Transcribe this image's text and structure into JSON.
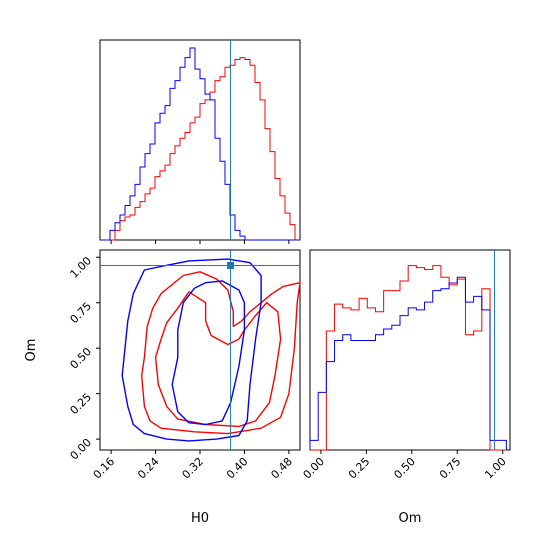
{
  "chart_data": {
    "type": "corner",
    "parameters": [
      "H0",
      "Om"
    ],
    "colors": {
      "red_series": "#ff0000",
      "blue_series": "#0000ff",
      "truth": "#1f77b4"
    },
    "truth": {
      "H0": 0.375,
      "Om": 0.955
    },
    "axes": {
      "H0": {
        "range": [
          0.14,
          0.5
        ],
        "ticks": [
          0.16,
          0.24,
          0.32,
          0.4,
          0.48
        ],
        "tick_labels": [
          "0.16",
          "0.24",
          "0.32",
          "0.40",
          "0.48"
        ],
        "xlabel": "H0"
      },
      "Om": {
        "range": [
          -0.06,
          1.04
        ],
        "ticks": [
          0.0,
          0.25,
          0.5,
          0.75,
          1.0
        ],
        "tick_labels": [
          "0.00",
          "0.25",
          "0.50",
          "0.75",
          "1.00"
        ],
        "xlabel": "Om",
        "ylabel": "Om"
      }
    },
    "hist_H0": {
      "bin_edges": [
        0.14,
        0.149,
        0.158,
        0.167,
        0.176,
        0.185,
        0.194,
        0.203,
        0.212,
        0.221,
        0.23,
        0.239,
        0.248,
        0.257,
        0.266,
        0.275,
        0.284,
        0.293,
        0.302,
        0.311,
        0.32,
        0.329,
        0.338,
        0.347,
        0.356,
        0.365,
        0.374,
        0.383,
        0.392,
        0.401,
        0.41,
        0.419,
        0.428,
        0.437,
        0.446,
        0.455,
        0.464,
        0.473,
        0.482,
        0.491,
        0.5
      ],
      "series": [
        {
          "color": "red",
          "counts": [
            0,
            0,
            0,
            0.05,
            0.1,
            0.12,
            0.13,
            0.17,
            0.2,
            0.24,
            0.27,
            0.33,
            0.36,
            0.39,
            0.45,
            0.49,
            0.53,
            0.56,
            0.61,
            0.64,
            0.71,
            0.73,
            0.77,
            0.83,
            0.85,
            0.9,
            0.91,
            0.94,
            0.95,
            0.94,
            0.91,
            0.82,
            0.73,
            0.58,
            0.46,
            0.32,
            0.23,
            0.14,
            0.08,
            0.0
          ]
        },
        {
          "color": "blue",
          "counts": [
            0,
            0,
            0.05,
            0.09,
            0.13,
            0.18,
            0.23,
            0.29,
            0.38,
            0.45,
            0.5,
            0.61,
            0.66,
            0.7,
            0.79,
            0.83,
            0.9,
            0.95,
            1.0,
            0.89,
            0.84,
            0.76,
            0.73,
            0.53,
            0.41,
            0.29,
            0.13,
            0.05,
            0.02,
            0.0,
            0,
            0,
            0,
            0,
            0,
            0,
            0,
            0,
            0,
            0
          ]
        }
      ]
    },
    "hist_Om": {
      "bin_edges": [
        -0.06,
        -0.015,
        0.03,
        0.075,
        0.12,
        0.165,
        0.21,
        0.255,
        0.3,
        0.345,
        0.39,
        0.435,
        0.48,
        0.525,
        0.57,
        0.615,
        0.66,
        0.705,
        0.75,
        0.795,
        0.84,
        0.885,
        0.93,
        0.975,
        1.02
      ],
      "series": [
        {
          "color": "red",
          "counts": [
            0,
            0,
            0.62,
            0.76,
            0.74,
            0.73,
            0.79,
            0.74,
            0.72,
            0.83,
            0.83,
            0.88,
            0.96,
            0.95,
            0.94,
            0.96,
            0.9,
            0.86,
            0.89,
            0.6,
            0.62,
            0.84,
            0.0,
            0.0
          ]
        },
        {
          "color": "blue",
          "counts": [
            0.05,
            0.3,
            0.46,
            0.57,
            0.6,
            0.57,
            0.57,
            0.57,
            0.6,
            0.63,
            0.65,
            0.7,
            0.74,
            0.73,
            0.77,
            0.83,
            0.84,
            0.87,
            0.9,
            0.77,
            0.8,
            0.73,
            0.05,
            0.05
          ]
        }
      ]
    },
    "contours": [
      {
        "color": "red",
        "level": "outer",
        "points": [
          [
            0.29,
            0.9
          ],
          [
            0.25,
            0.8
          ],
          [
            0.235,
            0.72
          ],
          [
            0.225,
            0.62
          ],
          [
            0.22,
            0.45
          ],
          [
            0.215,
            0.35
          ],
          [
            0.22,
            0.18
          ],
          [
            0.23,
            0.1
          ],
          [
            0.25,
            0.06
          ],
          [
            0.31,
            0.04
          ],
          [
            0.37,
            0.03
          ],
          [
            0.43,
            0.06
          ],
          [
            0.465,
            0.12
          ],
          [
            0.48,
            0.25
          ],
          [
            0.49,
            0.5
          ],
          [
            0.495,
            0.75
          ],
          [
            0.5,
            0.86
          ],
          [
            0.47,
            0.84
          ],
          [
            0.45,
            0.8
          ],
          [
            0.43,
            0.75
          ],
          [
            0.41,
            0.7
          ],
          [
            0.395,
            0.65
          ],
          [
            0.38,
            0.62
          ],
          [
            0.38,
            0.7
          ],
          [
            0.37,
            0.82
          ],
          [
            0.35,
            0.88
          ],
          [
            0.32,
            0.92
          ],
          [
            0.29,
            0.9
          ]
        ]
      },
      {
        "color": "red",
        "level": "inner",
        "points": [
          [
            0.3,
            0.81
          ],
          [
            0.28,
            0.72
          ],
          [
            0.26,
            0.64
          ],
          [
            0.25,
            0.55
          ],
          [
            0.24,
            0.45
          ],
          [
            0.245,
            0.3
          ],
          [
            0.26,
            0.18
          ],
          [
            0.28,
            0.11
          ],
          [
            0.33,
            0.08
          ],
          [
            0.39,
            0.07
          ],
          [
            0.42,
            0.1
          ],
          [
            0.445,
            0.2
          ],
          [
            0.455,
            0.35
          ],
          [
            0.465,
            0.55
          ],
          [
            0.46,
            0.7
          ],
          [
            0.44,
            0.75
          ],
          [
            0.42,
            0.68
          ],
          [
            0.4,
            0.6
          ],
          [
            0.39,
            0.55
          ],
          [
            0.37,
            0.52
          ],
          [
            0.34,
            0.57
          ],
          [
            0.33,
            0.65
          ],
          [
            0.33,
            0.75
          ],
          [
            0.3,
            0.81
          ]
        ]
      },
      {
        "color": "blue",
        "level": "outer",
        "points": [
          [
            0.25,
            0.95
          ],
          [
            0.22,
            0.93
          ],
          [
            0.2,
            0.8
          ],
          [
            0.19,
            0.65
          ],
          [
            0.185,
            0.5
          ],
          [
            0.18,
            0.35
          ],
          [
            0.19,
            0.18
          ],
          [
            0.2,
            0.08
          ],
          [
            0.22,
            0.03
          ],
          [
            0.26,
            0.0
          ],
          [
            0.3,
            -0.01
          ],
          [
            0.35,
            0.0
          ],
          [
            0.39,
            0.02
          ],
          [
            0.405,
            0.1
          ],
          [
            0.41,
            0.3
          ],
          [
            0.42,
            0.55
          ],
          [
            0.43,
            0.75
          ],
          [
            0.43,
            0.9
          ],
          [
            0.41,
            0.97
          ],
          [
            0.37,
            0.99
          ],
          [
            0.3,
            0.98
          ],
          [
            0.25,
            0.95
          ]
        ]
      },
      {
        "color": "blue",
        "level": "inner",
        "points": [
          [
            0.31,
            0.83
          ],
          [
            0.29,
            0.75
          ],
          [
            0.28,
            0.6
          ],
          [
            0.28,
            0.45
          ],
          [
            0.27,
            0.3
          ],
          [
            0.28,
            0.15
          ],
          [
            0.3,
            0.09
          ],
          [
            0.33,
            0.08
          ],
          [
            0.36,
            0.1
          ],
          [
            0.375,
            0.2
          ],
          [
            0.39,
            0.4
          ],
          [
            0.4,
            0.6
          ],
          [
            0.4,
            0.75
          ],
          [
            0.39,
            0.82
          ],
          [
            0.36,
            0.87
          ],
          [
            0.33,
            0.86
          ],
          [
            0.31,
            0.83
          ]
        ]
      }
    ]
  }
}
